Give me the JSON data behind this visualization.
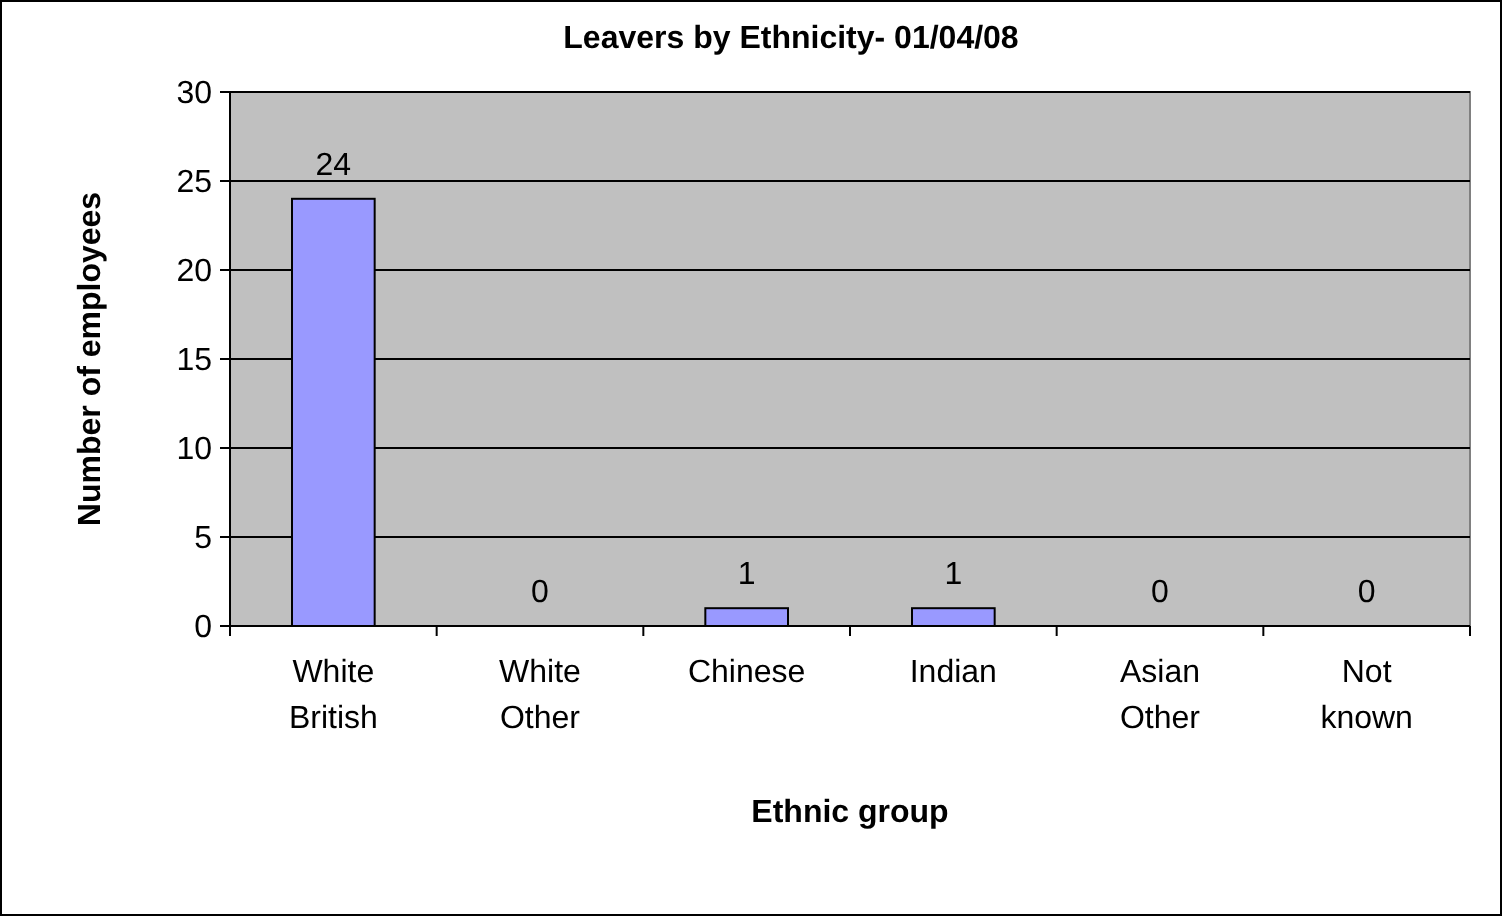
{
  "chart_data": {
    "type": "bar",
    "title": "Leavers by Ethnicity-  01/04/08",
    "xlabel": "Ethnic group",
    "ylabel": "Number of employees",
    "categories": [
      "White British",
      "White Other",
      "Chinese",
      "Indian",
      "Asian Other",
      "Not known"
    ],
    "values": [
      24,
      0,
      1,
      1,
      0,
      0
    ],
    "color": "#9999ff",
    "ylim": [
      0,
      30
    ],
    "yticks": [
      0,
      5,
      10,
      15,
      20,
      25,
      30
    ],
    "grid": "y",
    "data_labels": true
  }
}
